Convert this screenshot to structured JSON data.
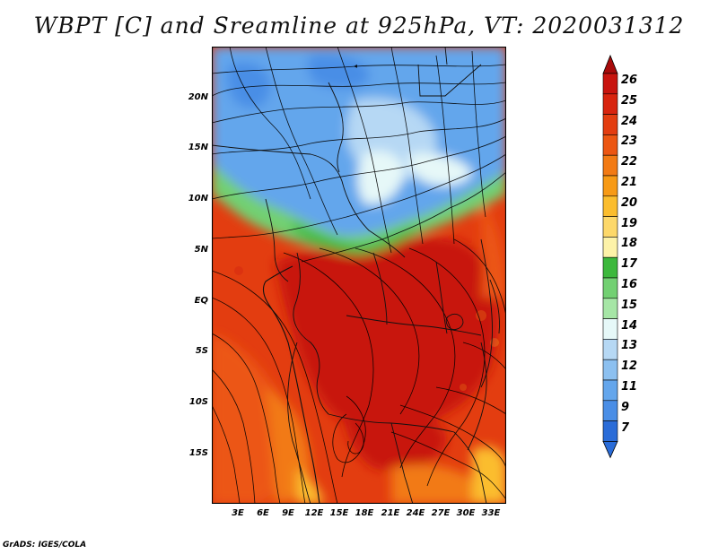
{
  "title": "WBPT [C] and Sreamline at 925hPa, VT: 2020031312",
  "map": {
    "lat_labels": [
      "20N",
      "15N",
      "10N",
      "5N",
      "EQ",
      "5S",
      "10S",
      "15S"
    ],
    "lon_labels": [
      "3E",
      "6E",
      "9E",
      "12E",
      "15E",
      "18E",
      "21E",
      "24E",
      "27E",
      "30E",
      "33E"
    ]
  },
  "colorbar": {
    "labels": [
      "26",
      "25",
      "24",
      "23",
      "22",
      "21",
      "20",
      "19",
      "18",
      "17",
      "16",
      "15",
      "14",
      "13",
      "12",
      "11",
      "9",
      "7"
    ],
    "colors": [
      "#c8140e",
      "#d8240e",
      "#e33d10",
      "#ec5612",
      "#f27a14",
      "#f79a16",
      "#fbbd2e",
      "#fdd86a",
      "#fdf2a8",
      "#3cb83c",
      "#72d072",
      "#a6e6a6",
      "#e6f8f8",
      "#b6d8f4",
      "#8cc0f0",
      "#64a6ec",
      "#4a8ee6",
      "#2a6cd8"
    ],
    "top_arrow_color": "#a80a0a",
    "bottom_arrow_color": "#2a6cd8"
  },
  "footer": "GrADS: IGES/COLA"
}
